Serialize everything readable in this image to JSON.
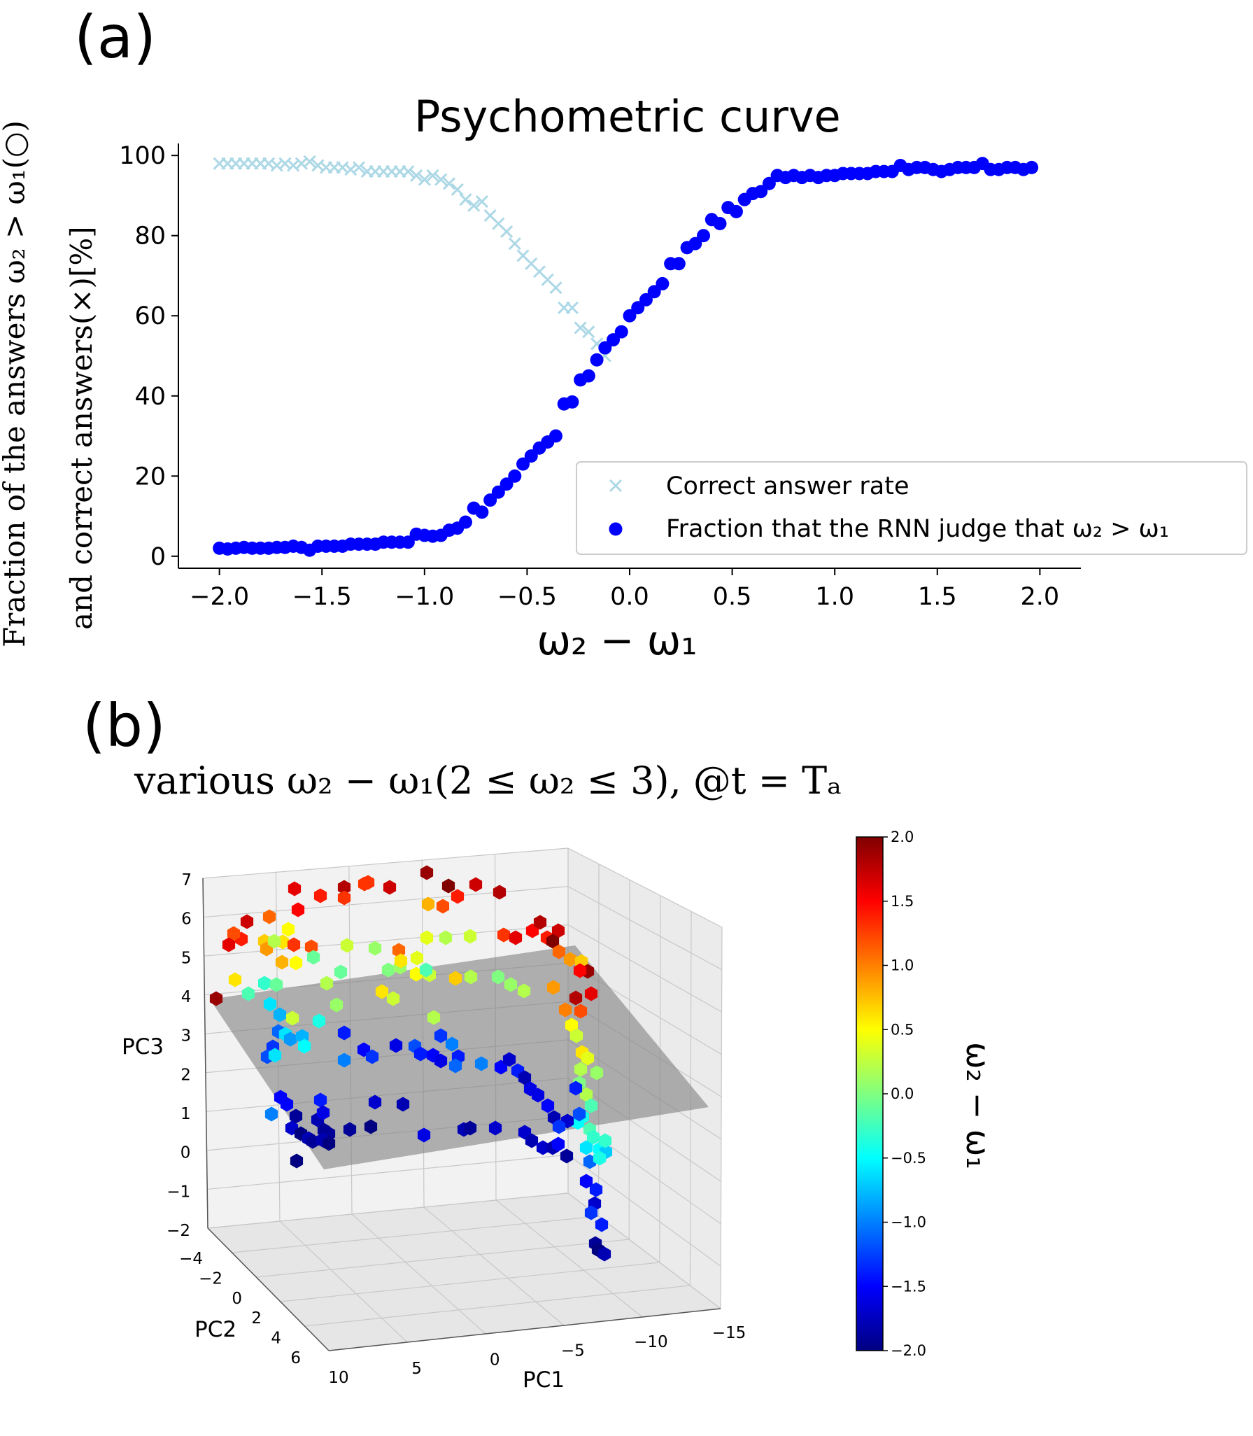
{
  "panel_a": {
    "label": "(a)",
    "title": "Psychometric curve",
    "ylabel_line1": "Fraction of the answers ω₂ > ω₁(○)",
    "ylabel_line2": "and correct answers(×)[%]",
    "xlabel": "ω₂ − ω₁",
    "legend": {
      "entries": [
        "Correct answer rate",
        "Fraction that the RNN judge that ω₂ > ω₁"
      ],
      "placement": "lower-right"
    },
    "x_ticks": [
      "−2.0",
      "−1.5",
      "−1.0",
      "−0.5",
      "0.0",
      "0.5",
      "1.0",
      "1.5",
      "2.0"
    ],
    "y_ticks": [
      "0",
      "20",
      "40",
      "60",
      "80",
      "100"
    ]
  },
  "panel_b": {
    "label": "(b)",
    "title": "various ω₂ − ω₁(2 ≤ ω₂ ≤ 3), @t = Tₐ",
    "xlabel": "PC1",
    "ylabel": "PC2",
    "zlabel": "PC3",
    "colorbar_label": "ω₂ − ω₁",
    "pc1_ticks": [
      "10",
      "5",
      "0",
      "−5",
      "−10",
      "−15"
    ],
    "pc2_ticks": [
      "−4",
      "−2",
      "0",
      "2",
      "4",
      "6"
    ],
    "pc3_ticks": [
      "−2",
      "−1",
      "0",
      "1",
      "2",
      "3",
      "4",
      "5",
      "6",
      "7"
    ],
    "colorbar_ticks": [
      "−2.0",
      "−1.5",
      "−1.0",
      "−0.5",
      "0.0",
      "0.5",
      "1.0",
      "1.5",
      "2.0"
    ]
  },
  "chart_data": [
    {
      "type": "scatter",
      "title": "Psychometric curve",
      "xlabel": "ω₂ − ω₁",
      "ylabel": "Fraction of the answers ω₂ > ω₁(○) and correct answers(×)[%]",
      "xlim": [
        -2.2,
        2.2
      ],
      "ylim": [
        -3,
        103
      ],
      "grid": false,
      "legend": "lower-right",
      "series": [
        {
          "name": "Correct answer rate",
          "marker": "x",
          "color": "#add8e6",
          "x": [
            -2.0,
            -1.96,
            -1.92,
            -1.88,
            -1.84,
            -1.8,
            -1.76,
            -1.72,
            -1.68,
            -1.64,
            -1.6,
            -1.56,
            -1.52,
            -1.48,
            -1.44,
            -1.4,
            -1.36,
            -1.32,
            -1.28,
            -1.24,
            -1.2,
            -1.16,
            -1.12,
            -1.08,
            -1.04,
            -1.0,
            -0.96,
            -0.92,
            -0.88,
            -0.84,
            -0.8,
            -0.76,
            -0.72,
            -0.68,
            -0.64,
            -0.6,
            -0.56,
            -0.52,
            -0.48,
            -0.44,
            -0.4,
            -0.36,
            -0.32,
            -0.28,
            -0.24,
            -0.2,
            -0.16,
            -0.12
          ],
          "y": [
            98,
            98,
            98,
            98,
            98,
            98,
            98,
            97.5,
            98,
            97.5,
            98,
            98.5,
            97.5,
            97,
            97,
            97,
            96.5,
            97,
            96,
            96,
            96,
            96,
            96,
            96,
            95,
            94,
            95,
            94,
            93,
            91.5,
            89,
            87.5,
            88.5,
            85,
            83,
            81,
            78,
            75,
            73,
            71,
            69,
            67,
            62,
            62,
            57,
            56,
            53,
            50
          ]
        },
        {
          "name": "Fraction that the RNN judge that ω₂ > ω₁",
          "marker": "o",
          "color": "#0000ff",
          "x": [
            -2.0,
            -1.96,
            -1.92,
            -1.88,
            -1.84,
            -1.8,
            -1.76,
            -1.72,
            -1.68,
            -1.64,
            -1.6,
            -1.56,
            -1.52,
            -1.48,
            -1.44,
            -1.4,
            -1.36,
            -1.32,
            -1.28,
            -1.24,
            -1.2,
            -1.16,
            -1.12,
            -1.08,
            -1.04,
            -1.0,
            -0.96,
            -0.92,
            -0.88,
            -0.84,
            -0.8,
            -0.76,
            -0.72,
            -0.68,
            -0.64,
            -0.6,
            -0.56,
            -0.52,
            -0.48,
            -0.44,
            -0.4,
            -0.36,
            -0.32,
            -0.28,
            -0.24,
            -0.2,
            -0.16,
            -0.12,
            -0.08,
            -0.04,
            0.0,
            0.04,
            0.08,
            0.12,
            0.16,
            0.2,
            0.24,
            0.28,
            0.32,
            0.36,
            0.4,
            0.44,
            0.48,
            0.52,
            0.56,
            0.6,
            0.64,
            0.68,
            0.72,
            0.76,
            0.8,
            0.84,
            0.88,
            0.92,
            0.96,
            1.0,
            1.04,
            1.08,
            1.12,
            1.16,
            1.2,
            1.24,
            1.28,
            1.32,
            1.36,
            1.4,
            1.44,
            1.48,
            1.52,
            1.56,
            1.6,
            1.64,
            1.68,
            1.72,
            1.76,
            1.8,
            1.84,
            1.88,
            1.92,
            1.96
          ],
          "y": [
            2,
            1.8,
            2,
            2.2,
            2,
            2,
            2,
            2.2,
            2.2,
            2.5,
            2.2,
            1.5,
            2.5,
            2.5,
            2.5,
            2.5,
            3,
            3,
            3,
            3,
            3.5,
            3.5,
            3.5,
            3.5,
            5.5,
            5.2,
            5,
            5.2,
            6.5,
            7,
            8.5,
            12,
            11,
            14,
            16,
            18,
            20,
            23,
            25,
            27,
            28.5,
            30,
            38,
            38.5,
            44,
            45,
            49,
            52,
            54,
            56,
            60,
            62,
            64,
            66,
            68,
            73,
            73,
            77,
            78,
            80,
            84,
            83,
            87,
            86,
            89,
            90.5,
            91,
            93,
            95,
            94.5,
            95,
            94.5,
            95,
            94.5,
            95,
            95,
            95.5,
            95.5,
            95.5,
            95.5,
            96,
            96,
            96,
            97.5,
            96.5,
            97,
            97,
            96.5,
            96,
            96.5,
            97,
            97,
            97,
            98,
            96.5,
            96.5,
            97,
            97,
            96.5,
            97
          ]
        }
      ]
    },
    {
      "type": "scatter",
      "title": "various ω₂ − ω₁(2 ≤ ω₂ ≤ 3), @t = Tₐ",
      "subtype": "3d",
      "xlabel": "PC1",
      "ylabel": "PC2",
      "zlabel": "PC3",
      "xlim": [
        -15,
        10
      ],
      "ylim": [
        -4,
        6
      ],
      "zlim": [
        -2,
        7
      ],
      "colorbar": {
        "label": "ω₂ − ω₁",
        "range": [
          -2.0,
          2.0
        ],
        "colormap": "jet"
      }
    }
  ]
}
